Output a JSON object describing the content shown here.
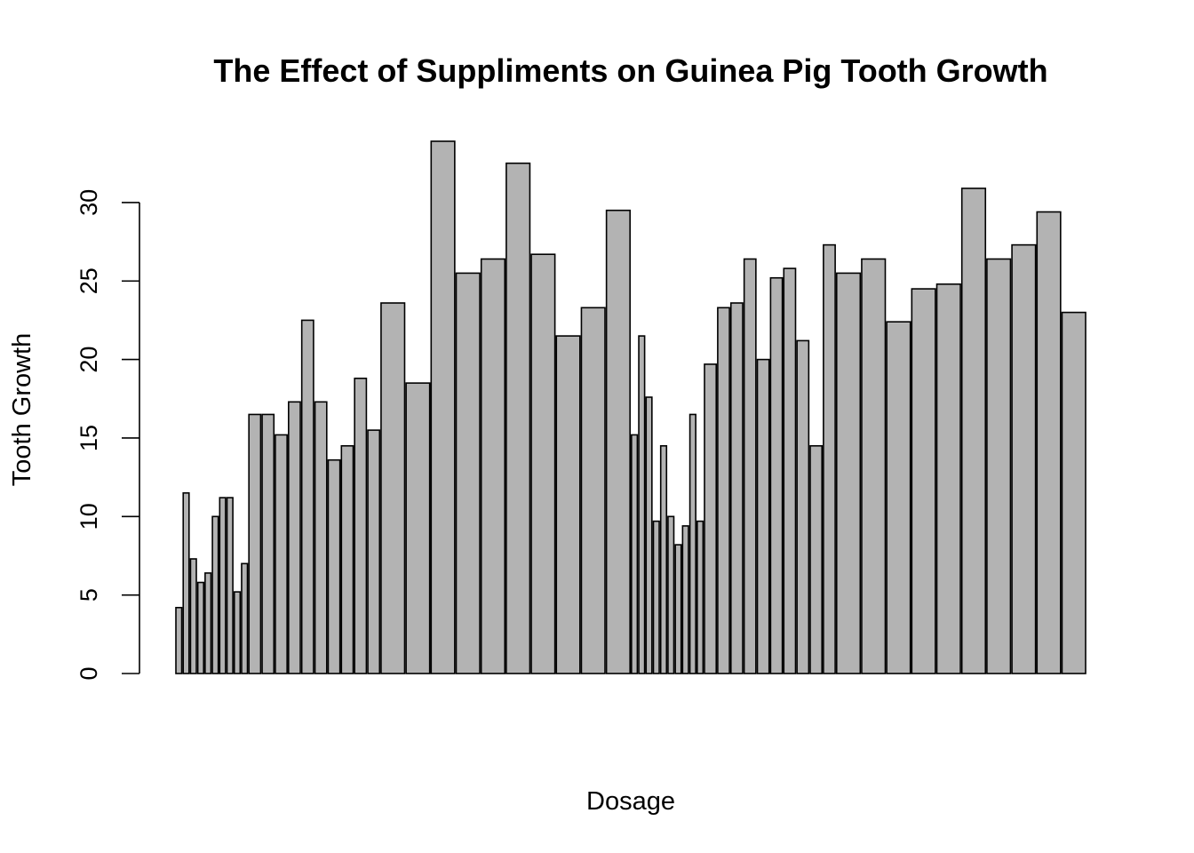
{
  "chart_data": {
    "type": "bar",
    "title": "The Effect of Suppliments on Guinea Pig Tooth Growth",
    "xlabel": "Dosage",
    "ylabel": "Tooth Growth",
    "ylim": [
      0,
      33.9
    ],
    "yticks": [
      "0",
      "5",
      "10",
      "15",
      "20",
      "25",
      "30"
    ],
    "grid": false,
    "bar_fill": "#b3b3b3",
    "bar_stroke": "#000000",
    "dose": [
      0.5,
      0.5,
      0.5,
      0.5,
      0.5,
      0.5,
      0.5,
      0.5,
      0.5,
      0.5,
      1,
      1,
      1,
      1,
      1,
      1,
      1,
      1,
      1,
      1,
      2,
      2,
      2,
      2,
      2,
      2,
      2,
      2,
      2,
      2,
      0.5,
      0.5,
      0.5,
      0.5,
      0.5,
      0.5,
      0.5,
      0.5,
      0.5,
      0.5,
      1,
      1,
      1,
      1,
      1,
      1,
      1,
      1,
      1,
      1,
      2,
      2,
      2,
      2,
      2,
      2,
      2,
      2,
      2,
      2
    ],
    "values": [
      4.2,
      11.5,
      7.3,
      5.8,
      6.4,
      10.0,
      11.2,
      11.2,
      5.2,
      7.0,
      16.5,
      16.5,
      15.2,
      17.3,
      22.5,
      17.3,
      13.6,
      14.5,
      18.8,
      15.5,
      23.6,
      18.5,
      33.9,
      25.5,
      26.4,
      32.5,
      26.7,
      21.5,
      23.3,
      29.5,
      15.2,
      21.5,
      17.6,
      9.7,
      14.5,
      10.0,
      8.2,
      9.4,
      16.5,
      9.7,
      19.7,
      23.3,
      23.6,
      26.4,
      20.0,
      25.2,
      25.8,
      21.2,
      14.5,
      27.3,
      25.5,
      26.4,
      22.4,
      24.5,
      24.8,
      30.9,
      26.4,
      27.3,
      29.4,
      23.0
    ]
  }
}
